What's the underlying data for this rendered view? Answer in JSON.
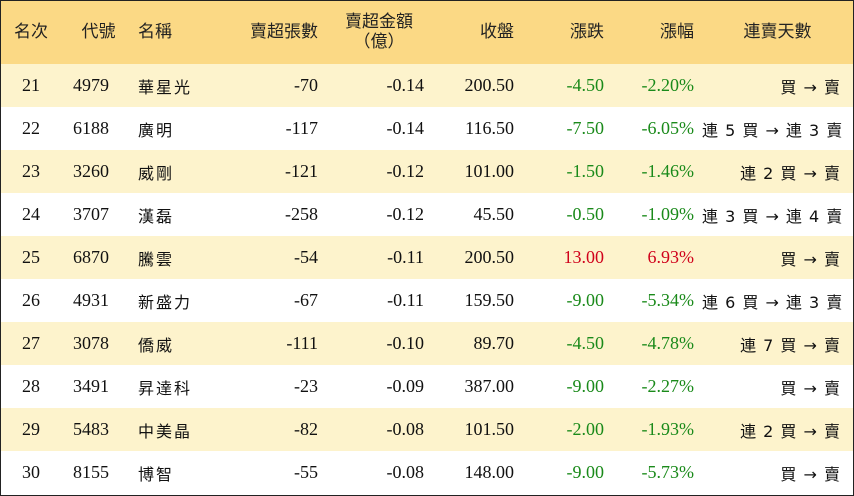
{
  "columns": {
    "rank": "名次",
    "code": "代號",
    "name": "名稱",
    "net_lots": "賣超張數",
    "net_amount_line1": "賣超金額",
    "net_amount_line2": "（億）",
    "close": "收盤",
    "change": "漲跌",
    "pct": "漲幅",
    "streak": "連賣天數"
  },
  "colors": {
    "header_bg": "#fbd985",
    "odd_row_bg": "#fdf3cc",
    "even_row_bg": "#ffffff",
    "up": "#d0021b",
    "down": "#1a8a1a"
  },
  "rows": [
    {
      "rank": "21",
      "code": "4979",
      "name": "華星光",
      "net_lots": "-70",
      "net_amount": "-0.14",
      "close": "200.50",
      "change": "-4.50",
      "pct": "-2.20%",
      "direction": "down",
      "streak": "買 → 賣"
    },
    {
      "rank": "22",
      "code": "6188",
      "name": "廣明",
      "net_lots": "-117",
      "net_amount": "-0.14",
      "close": "116.50",
      "change": "-7.50",
      "pct": "-6.05%",
      "direction": "down",
      "streak": "連 5 買 → 連 3 賣"
    },
    {
      "rank": "23",
      "code": "3260",
      "name": "威剛",
      "net_lots": "-121",
      "net_amount": "-0.12",
      "close": "101.00",
      "change": "-1.50",
      "pct": "-1.46%",
      "direction": "down",
      "streak": "連 2 買 → 賣"
    },
    {
      "rank": "24",
      "code": "3707",
      "name": "漢磊",
      "net_lots": "-258",
      "net_amount": "-0.12",
      "close": "45.50",
      "change": "-0.50",
      "pct": "-1.09%",
      "direction": "down",
      "streak": "連 3 買 → 連 4 賣"
    },
    {
      "rank": "25",
      "code": "6870",
      "name": "騰雲",
      "net_lots": "-54",
      "net_amount": "-0.11",
      "close": "200.50",
      "change": "13.00",
      "pct": "6.93%",
      "direction": "up",
      "streak": "買 → 賣"
    },
    {
      "rank": "26",
      "code": "4931",
      "name": "新盛力",
      "net_lots": "-67",
      "net_amount": "-0.11",
      "close": "159.50",
      "change": "-9.00",
      "pct": "-5.34%",
      "direction": "down",
      "streak": "連 6 買 → 連 3 賣"
    },
    {
      "rank": "27",
      "code": "3078",
      "name": "僑威",
      "net_lots": "-111",
      "net_amount": "-0.10",
      "close": "89.70",
      "change": "-4.50",
      "pct": "-4.78%",
      "direction": "down",
      "streak": "連 7 買 → 賣"
    },
    {
      "rank": "28",
      "code": "3491",
      "name": "昇達科",
      "net_lots": "-23",
      "net_amount": "-0.09",
      "close": "387.00",
      "change": "-9.00",
      "pct": "-2.27%",
      "direction": "down",
      "streak": "買 → 賣"
    },
    {
      "rank": "29",
      "code": "5483",
      "name": "中美晶",
      "net_lots": "-82",
      "net_amount": "-0.08",
      "close": "101.50",
      "change": "-2.00",
      "pct": "-1.93%",
      "direction": "down",
      "streak": "連 2 買 → 賣"
    },
    {
      "rank": "30",
      "code": "8155",
      "name": "博智",
      "net_lots": "-55",
      "net_amount": "-0.08",
      "close": "148.00",
      "change": "-9.00",
      "pct": "-5.73%",
      "direction": "down",
      "streak": "買 → 賣"
    }
  ]
}
